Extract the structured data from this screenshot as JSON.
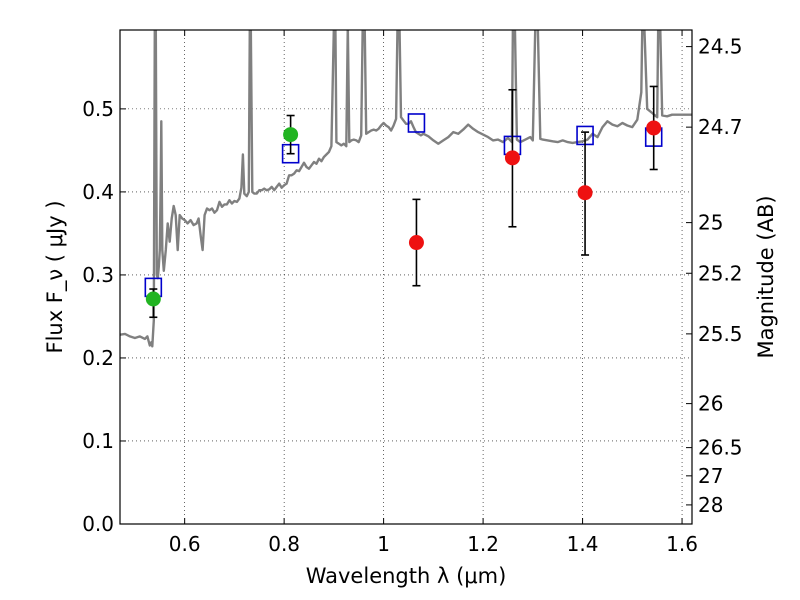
{
  "chart_data": {
    "type": "scatter",
    "title": "",
    "xlabel": "Wavelength  λ (μm)",
    "ylabel": "Flux  F_ν ( μJy )",
    "ylabel_right": "Magnitude (AB)",
    "xlim": [
      0.47,
      1.62
    ],
    "ylim": [
      0.0,
      0.595
    ],
    "grid": true,
    "grid_style": "dotted",
    "x_ticks": [
      0.6,
      0.8,
      1.0,
      1.2,
      1.4,
      1.6
    ],
    "x_tick_labels": [
      "0.6",
      "0.8",
      "1",
      "1.2",
      "1.4",
      "1.6"
    ],
    "y_ticks": [
      0.0,
      0.1,
      0.2,
      0.3,
      0.4,
      0.5
    ],
    "y_tick_labels": [
      "0.0",
      "0.1",
      "0.2",
      "0.3",
      "0.4",
      "0.5"
    ],
    "right_ticks": [
      {
        "flux": 0.575,
        "label": "24.5"
      },
      {
        "flux": 0.478,
        "label": "24.7"
      },
      {
        "flux": 0.363,
        "label": "25"
      },
      {
        "flux": 0.302,
        "label": "25.2"
      },
      {
        "flux": 0.229,
        "label": "25.5"
      },
      {
        "flux": 0.145,
        "label": "26"
      },
      {
        "flux": 0.092,
        "label": "26.5"
      },
      {
        "flux": 0.058,
        "label": "27"
      },
      {
        "flux": 0.023,
        "label": "28"
      }
    ],
    "colors": {
      "template": "#808080",
      "model_box": "#0000cc",
      "green": "#22b422",
      "red": "#ee1111",
      "errorbar": "#000000"
    },
    "series": [
      {
        "kind": "template_spectrum",
        "points": [
          [
            0.47,
            0.228
          ],
          [
            0.48,
            0.229
          ],
          [
            0.49,
            0.226
          ],
          [
            0.5,
            0.224
          ],
          [
            0.51,
            0.226
          ],
          [
            0.52,
            0.223
          ],
          [
            0.525,
            0.226
          ],
          [
            0.53,
            0.215
          ],
          [
            0.533,
            0.219
          ],
          [
            0.535,
            0.214
          ],
          [
            0.538,
            0.245
          ],
          [
            0.54,
            0.6
          ],
          [
            0.542,
            0.6
          ],
          [
            0.544,
            0.3
          ],
          [
            0.546,
            0.296
          ],
          [
            0.548,
            0.31
          ],
          [
            0.55,
            0.33
          ],
          [
            0.552,
            0.42
          ],
          [
            0.553,
            0.485
          ],
          [
            0.555,
            0.33
          ],
          [
            0.558,
            0.305
          ],
          [
            0.562,
            0.33
          ],
          [
            0.566,
            0.362
          ],
          [
            0.57,
            0.34
          ],
          [
            0.574,
            0.368
          ],
          [
            0.578,
            0.383
          ],
          [
            0.582,
            0.372
          ],
          [
            0.586,
            0.33
          ],
          [
            0.59,
            0.372
          ],
          [
            0.595,
            0.368
          ],
          [
            0.6,
            0.366
          ],
          [
            0.606,
            0.362
          ],
          [
            0.612,
            0.366
          ],
          [
            0.618,
            0.36
          ],
          [
            0.624,
            0.362
          ],
          [
            0.628,
            0.368
          ],
          [
            0.632,
            0.348
          ],
          [
            0.636,
            0.33
          ],
          [
            0.64,
            0.372
          ],
          [
            0.645,
            0.38
          ],
          [
            0.65,
            0.378
          ],
          [
            0.655,
            0.38
          ],
          [
            0.66,
            0.375
          ],
          [
            0.665,
            0.378
          ],
          [
            0.67,
            0.388
          ],
          [
            0.675,
            0.382
          ],
          [
            0.68,
            0.385
          ],
          [
            0.685,
            0.385
          ],
          [
            0.69,
            0.39
          ],
          [
            0.695,
            0.386
          ],
          [
            0.7,
            0.389
          ],
          [
            0.705,
            0.388
          ],
          [
            0.71,
            0.392
          ],
          [
            0.714,
            0.405
          ],
          [
            0.717,
            0.445
          ],
          [
            0.72,
            0.398
          ],
          [
            0.725,
            0.395
          ],
          [
            0.729,
            0.4
          ],
          [
            0.731,
            0.6
          ],
          [
            0.733,
            0.6
          ],
          [
            0.736,
            0.4
          ],
          [
            0.74,
            0.398
          ],
          [
            0.745,
            0.398
          ],
          [
            0.75,
            0.402
          ],
          [
            0.755,
            0.402
          ],
          [
            0.76,
            0.404
          ],
          [
            0.765,
            0.402
          ],
          [
            0.77,
            0.403
          ],
          [
            0.775,
            0.406
          ],
          [
            0.78,
            0.402
          ],
          [
            0.785,
            0.406
          ],
          [
            0.79,
            0.41
          ],
          [
            0.795,
            0.405
          ],
          [
            0.8,
            0.408
          ],
          [
            0.805,
            0.41
          ],
          [
            0.81,
            0.42
          ],
          [
            0.815,
            0.42
          ],
          [
            0.82,
            0.422
          ],
          [
            0.825,
            0.426
          ],
          [
            0.83,
            0.425
          ],
          [
            0.835,
            0.43
          ],
          [
            0.84,
            0.435
          ],
          [
            0.845,
            0.43
          ],
          [
            0.85,
            0.428
          ],
          [
            0.855,
            0.432
          ],
          [
            0.86,
            0.436
          ],
          [
            0.865,
            0.434
          ],
          [
            0.87,
            0.44
          ],
          [
            0.875,
            0.437
          ],
          [
            0.88,
            0.442
          ],
          [
            0.885,
            0.445
          ],
          [
            0.89,
            0.448
          ],
          [
            0.895,
            0.455
          ],
          [
            0.9,
            0.6
          ],
          [
            0.903,
            0.6
          ],
          [
            0.905,
            0.46
          ],
          [
            0.91,
            0.458
          ],
          [
            0.915,
            0.456
          ],
          [
            0.92,
            0.458
          ],
          [
            0.925,
            0.455
          ],
          [
            0.928,
            0.6
          ],
          [
            0.931,
            0.46
          ],
          [
            0.935,
            0.462
          ],
          [
            0.94,
            0.463
          ],
          [
            0.945,
            0.462
          ],
          [
            0.95,
            0.46
          ],
          [
            0.955,
            0.468
          ],
          [
            0.958,
            0.6
          ],
          [
            0.962,
            0.6
          ],
          [
            0.965,
            0.47
          ],
          [
            0.97,
            0.472
          ],
          [
            0.975,
            0.474
          ],
          [
            0.98,
            0.475
          ],
          [
            0.985,
            0.474
          ],
          [
            0.99,
            0.476
          ],
          [
            0.995,
            0.48
          ],
          [
            1.0,
            0.483
          ],
          [
            1.005,
            0.48
          ],
          [
            1.01,
            0.478
          ],
          [
            1.015,
            0.474
          ],
          [
            1.02,
            0.48
          ],
          [
            1.025,
            0.488
          ],
          [
            1.028,
            0.6
          ],
          [
            1.032,
            0.6
          ],
          [
            1.035,
            0.49
          ],
          [
            1.04,
            0.486
          ],
          [
            1.045,
            0.482
          ],
          [
            1.05,
            0.482
          ],
          [
            1.055,
            0.485
          ],
          [
            1.06,
            0.478
          ],
          [
            1.065,
            0.472
          ],
          [
            1.07,
            0.47
          ],
          [
            1.075,
            0.468
          ],
          [
            1.08,
            0.47
          ],
          [
            1.09,
            0.467
          ],
          [
            1.1,
            0.462
          ],
          [
            1.11,
            0.458
          ],
          [
            1.12,
            0.462
          ],
          [
            1.13,
            0.466
          ],
          [
            1.14,
            0.472
          ],
          [
            1.15,
            0.47
          ],
          [
            1.16,
            0.475
          ],
          [
            1.17,
            0.481
          ],
          [
            1.18,
            0.476
          ],
          [
            1.19,
            0.472
          ],
          [
            1.2,
            0.469
          ],
          [
            1.21,
            0.466
          ],
          [
            1.22,
            0.462
          ],
          [
            1.23,
            0.463
          ],
          [
            1.24,
            0.46
          ],
          [
            1.25,
            0.465
          ],
          [
            1.258,
            0.46
          ],
          [
            1.26,
            0.6
          ],
          [
            1.264,
            0.6
          ],
          [
            1.268,
            0.463
          ],
          [
            1.275,
            0.46
          ],
          [
            1.285,
            0.463
          ],
          [
            1.295,
            0.466
          ],
          [
            1.3,
            0.462
          ],
          [
            1.305,
            0.6
          ],
          [
            1.31,
            0.6
          ],
          [
            1.315,
            0.464
          ],
          [
            1.32,
            0.463
          ],
          [
            1.33,
            0.462
          ],
          [
            1.34,
            0.461
          ],
          [
            1.35,
            0.46
          ],
          [
            1.36,
            0.462
          ],
          [
            1.37,
            0.46
          ],
          [
            1.38,
            0.459
          ],
          [
            1.39,
            0.46
          ],
          [
            1.4,
            0.461
          ],
          [
            1.41,
            0.463
          ],
          [
            1.42,
            0.47
          ],
          [
            1.43,
            0.466
          ],
          [
            1.44,
            0.478
          ],
          [
            1.45,
            0.485
          ],
          [
            1.46,
            0.481
          ],
          [
            1.47,
            0.479
          ],
          [
            1.48,
            0.483
          ],
          [
            1.49,
            0.48
          ],
          [
            1.5,
            0.478
          ],
          [
            1.51,
            0.487
          ],
          [
            1.518,
            0.52
          ],
          [
            1.52,
            0.6
          ],
          [
            1.524,
            0.6
          ],
          [
            1.53,
            0.5
          ],
          [
            1.54,
            0.495
          ],
          [
            1.55,
            0.49
          ],
          [
            1.552,
            0.6
          ],
          [
            1.556,
            0.6
          ],
          [
            1.56,
            0.492
          ],
          [
            1.57,
            0.491
          ],
          [
            1.58,
            0.493
          ],
          [
            1.59,
            0.493
          ],
          [
            1.6,
            0.493
          ],
          [
            1.61,
            0.493
          ],
          [
            1.62,
            0.493
          ]
        ]
      },
      {
        "kind": "model_boxes",
        "points": [
          [
            0.537,
            0.285
          ],
          [
            0.813,
            0.446
          ],
          [
            1.066,
            0.483
          ],
          [
            1.259,
            0.456
          ],
          [
            1.405,
            0.468
          ],
          [
            1.543,
            0.466
          ]
        ]
      },
      {
        "kind": "observed_green",
        "points": [
          {
            "x": 0.537,
            "y": 0.271,
            "lo": 0.249,
            "hi": 0.283
          },
          {
            "x": 0.813,
            "y": 0.469,
            "lo": 0.446,
            "hi": 0.492
          }
        ]
      },
      {
        "kind": "observed_red",
        "points": [
          {
            "x": 1.066,
            "y": 0.339,
            "lo": 0.287,
            "hi": 0.391
          },
          {
            "x": 1.259,
            "y": 0.441,
            "lo": 0.358,
            "hi": 0.523
          },
          {
            "x": 1.405,
            "y": 0.399,
            "lo": 0.324,
            "hi": 0.472
          },
          {
            "x": 1.543,
            "y": 0.477,
            "lo": 0.427,
            "hi": 0.527
          }
        ]
      }
    ]
  }
}
